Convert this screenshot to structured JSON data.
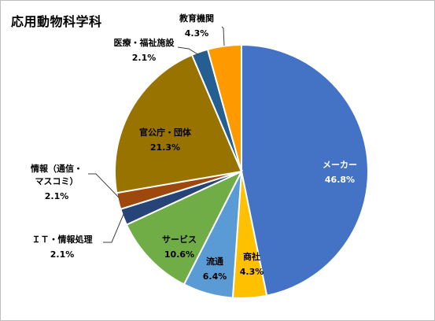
{
  "chart_data": {
    "type": "pie",
    "title": "応用動物科学科",
    "start_angle_deg": 0,
    "direction": "clockwise",
    "slices": [
      {
        "name": "メーカー",
        "value": 46.8,
        "value_label": "46.8%",
        "color": "#4472c4",
        "label_color": "#ffffff"
      },
      {
        "name": "商社",
        "value": 4.3,
        "value_label": "4.3%",
        "color": "#ffc000",
        "label_color": "#000000"
      },
      {
        "name": "流通",
        "value": 6.4,
        "value_label": "6.4%",
        "color": "#5b9bd5",
        "label_color": "#000000"
      },
      {
        "name": "サービス",
        "value": 10.6,
        "value_label": "10.6%",
        "color": "#70ad47",
        "label_color": "#000000"
      },
      {
        "name": "ＩＴ・情報処理",
        "value": 2.1,
        "value_label": "2.1%",
        "color": "#264478",
        "label_color": "#000000"
      },
      {
        "name": "情報（通信・マスコミ）",
        "name_lines": [
          "情報（通信・",
          "マスコミ）"
        ],
        "value": 2.1,
        "value_label": "2.1%",
        "color": "#9e480e",
        "label_color": "#000000"
      },
      {
        "name": "官公庁・団体",
        "value": 21.3,
        "value_label": "21.3%",
        "color": "#997300",
        "label_color": "#000000"
      },
      {
        "name": "医療・福祉施設",
        "value": 2.1,
        "value_label": "2.1%",
        "color": "#255e91",
        "label_color": "#000000"
      },
      {
        "name": "教育機関",
        "value": 4.3,
        "value_label": "4.3%",
        "color": "#ff9900",
        "label_color": "#000000"
      }
    ]
  }
}
